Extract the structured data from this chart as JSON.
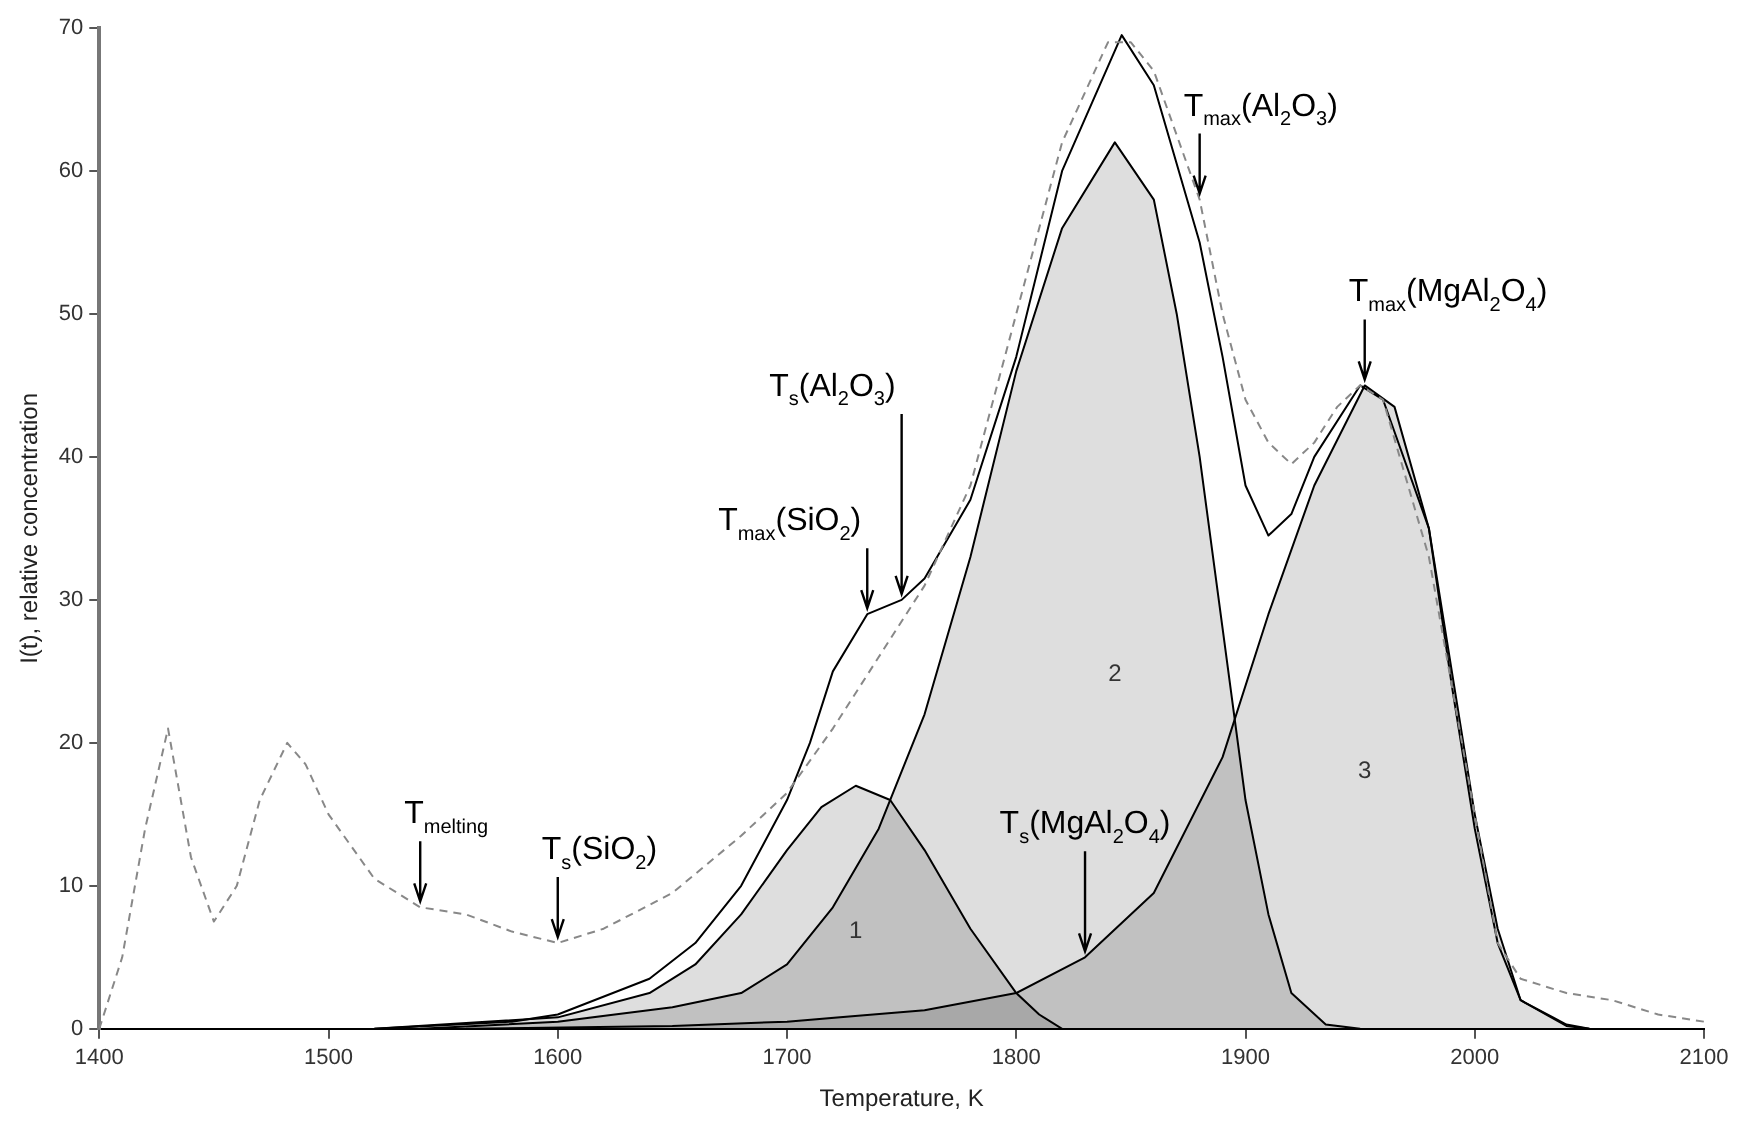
{
  "chart_data": {
    "type": "line",
    "xlabel": "Temperature, K",
    "ylabel": "I(t), relative concentration",
    "xlim": [
      1400,
      2100
    ],
    "xticks": [
      1400,
      1500,
      1600,
      1700,
      1800,
      1900,
      2000,
      2100
    ],
    "ylim": [
      0,
      70
    ],
    "yticks": [
      0,
      10,
      20,
      30,
      40,
      50,
      60,
      70
    ],
    "grid": false,
    "legend": false,
    "marker": "none",
    "series": [
      {
        "line_style": "dashed",
        "color": "#888888",
        "x": [
          1400,
          1410,
          1420,
          1430,
          1440,
          1450,
          1460,
          1470,
          1482,
          1490,
          1500,
          1520,
          1540,
          1560,
          1580,
          1600,
          1620,
          1650,
          1680,
          1700,
          1720,
          1740,
          1760,
          1780,
          1800,
          1820,
          1840,
          1850,
          1860,
          1880,
          1890,
          1900,
          1910,
          1920,
          1930,
          1940,
          1950,
          1960,
          1980,
          2000,
          2010,
          2020,
          2040,
          2060,
          2080,
          2100
        ],
        "values": [
          0,
          5,
          14,
          21,
          12,
          7.5,
          10,
          16,
          20,
          18.5,
          15,
          10.5,
          8.5,
          8,
          6.8,
          6,
          7,
          9.5,
          13.5,
          16.5,
          21,
          26,
          31,
          38,
          50,
          62,
          69,
          69,
          67,
          58,
          50,
          44,
          41,
          39.5,
          41,
          43.5,
          45,
          44,
          33,
          15,
          6,
          3.5,
          2.5,
          2,
          1,
          0.5
        ]
      },
      {
        "line_style": "solid",
        "color": "#000000",
        "x": [
          1520,
          1580,
          1600,
          1640,
          1660,
          1680,
          1700,
          1710,
          1720,
          1735,
          1750,
          1760,
          1780,
          1800,
          1820,
          1846,
          1860,
          1880,
          1890,
          1900,
          1910,
          1920,
          1930,
          1950,
          1960,
          1980,
          1990,
          2000,
          2010,
          2020,
          2040,
          2050
        ],
        "values": [
          0,
          0.5,
          1,
          3.5,
          6,
          10,
          16,
          20,
          25,
          29,
          30,
          31.5,
          37,
          47,
          60,
          69.5,
          66,
          55,
          47,
          38,
          34.5,
          36,
          40,
          45,
          44,
          35,
          24,
          14,
          6,
          2,
          0.3,
          0
        ]
      },
      {
        "type": "area",
        "name": "1",
        "color": "#000000",
        "x": [
          1520,
          1600,
          1640,
          1660,
          1680,
          1700,
          1715,
          1730,
          1745,
          1760,
          1780,
          1800,
          1810,
          1820
        ],
        "values": [
          0,
          0.8,
          2.5,
          4.5,
          8,
          12.5,
          15.5,
          17,
          16,
          12.5,
          7,
          2.5,
          1,
          0
        ]
      },
      {
        "type": "area",
        "name": "2",
        "color": "#000000",
        "x": [
          1540,
          1600,
          1650,
          1680,
          1700,
          1720,
          1740,
          1760,
          1780,
          1800,
          1820,
          1843,
          1860,
          1870,
          1880,
          1890,
          1900,
          1910,
          1920,
          1935,
          1950
        ],
        "values": [
          0,
          0.5,
          1.5,
          2.5,
          4.5,
          8.5,
          14,
          22,
          33,
          46,
          56,
          62,
          58,
          50,
          40,
          28,
          16,
          8,
          2.5,
          0.3,
          0
        ]
      },
      {
        "type": "area",
        "name": "3",
        "color": "#000000",
        "x": [
          1560,
          1650,
          1700,
          1760,
          1800,
          1830,
          1860,
          1890,
          1910,
          1930,
          1952,
          1965,
          1980,
          1990,
          2000,
          2010,
          2020,
          2040,
          2050
        ],
        "values": [
          0,
          0.2,
          0.5,
          1.3,
          2.5,
          5,
          9.5,
          19,
          29,
          38,
          45,
          43.5,
          35,
          25,
          15,
          7,
          2,
          0.2,
          0
        ]
      }
    ],
    "annotations": [
      {
        "text": "T$_{melting}$",
        "x": 1540,
        "y": 8.5
      },
      {
        "text": "T$_{s}$(SiO$_{2}$)",
        "x": 1600,
        "y": 6
      },
      {
        "text": "T$_{max}$(SiO$_{2}$)",
        "x": 1735,
        "y": 29
      },
      {
        "text": "T$_{s}$(Al$_{2}$O$_{3}$)",
        "x": 1750,
        "y": 30
      },
      {
        "text": "T$_{max}$(Al$_{2}$O$_{3}$)",
        "x": 1880,
        "y": 58
      },
      {
        "text": "T$_{max}$(MgAl$_{2}$O$_{4}$)",
        "x": 1952,
        "y": 45
      },
      {
        "text": "T$_{s}$(MgAl$_{2}$O$_{4}$)",
        "x": 1830,
        "y": 5
      }
    ]
  }
}
